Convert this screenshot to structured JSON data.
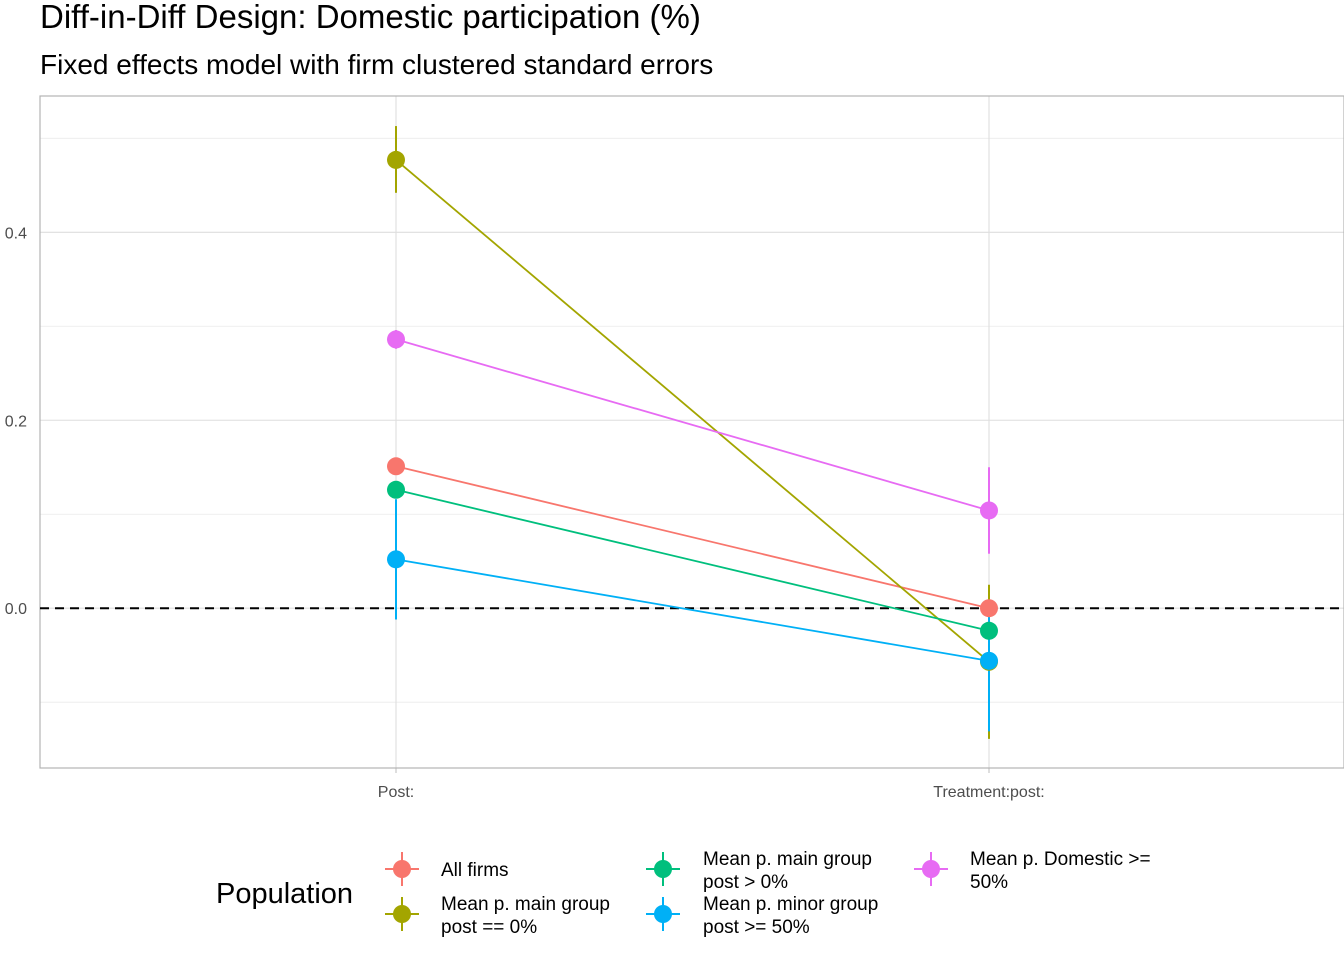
{
  "chart_data": {
    "type": "line",
    "title": "Diff-in-Diff Design: Domestic participation (%)",
    "subtitle": "Fixed effects model with firm clustered standard errors",
    "xlabel": "",
    "ylabel": "",
    "categories": [
      "Post:",
      "Treatment:post:"
    ],
    "ylim": [
      -0.17,
      0.545
    ],
    "y_ticks": [
      0.0,
      0.2,
      0.4
    ],
    "y_tick_labels": [
      "0.0",
      "0.2",
      "0.4"
    ],
    "grid": true,
    "reference_line": {
      "y": 0,
      "style": "dashed",
      "color": "#000000"
    },
    "legend": {
      "title": "Population",
      "position": "bottom"
    },
    "series": [
      {
        "name": "All firms",
        "label_lines": [
          "All firms"
        ],
        "color": "#F8766D",
        "values": [
          0.151,
          0.0
        ],
        "ci_low": [
          0.151,
          -0.002
        ],
        "ci_high": [
          0.151,
          0.002
        ]
      },
      {
        "name": "Mean p. main group post == 0%",
        "label_lines": [
          "Mean p. main group",
          "post == 0%"
        ],
        "color": "#A3A500",
        "values": [
          0.477,
          -0.057
        ],
        "ci_low": [
          0.442,
          -0.139
        ],
        "ci_high": [
          0.513,
          0.025
        ]
      },
      {
        "name": "Mean p. main group post > 0%",
        "label_lines": [
          "Mean p. main group",
          "post > 0%"
        ],
        "color": "#00BF7D",
        "values": [
          0.126,
          -0.024
        ],
        "ci_low": [
          0.126,
          -0.024
        ],
        "ci_high": [
          0.126,
          -0.024
        ]
      },
      {
        "name": "Mean p. minor group post >= 50%",
        "label_lines": [
          "Mean p. minor group",
          "post >= 50%"
        ],
        "color": "#00B0F6",
        "values": [
          0.052,
          -0.056
        ],
        "ci_low": [
          -0.012,
          -0.131
        ],
        "ci_high": [
          0.116,
          0.0
        ]
      },
      {
        "name": "Mean p. Domestic >= 50%",
        "label_lines": [
          "Mean p. Domestic >=",
          "50%"
        ],
        "color": "#E76BF3",
        "values": [
          0.286,
          0.104
        ],
        "ci_low": [
          0.276,
          0.058
        ],
        "ci_high": [
          0.296,
          0.15
        ]
      }
    ]
  }
}
